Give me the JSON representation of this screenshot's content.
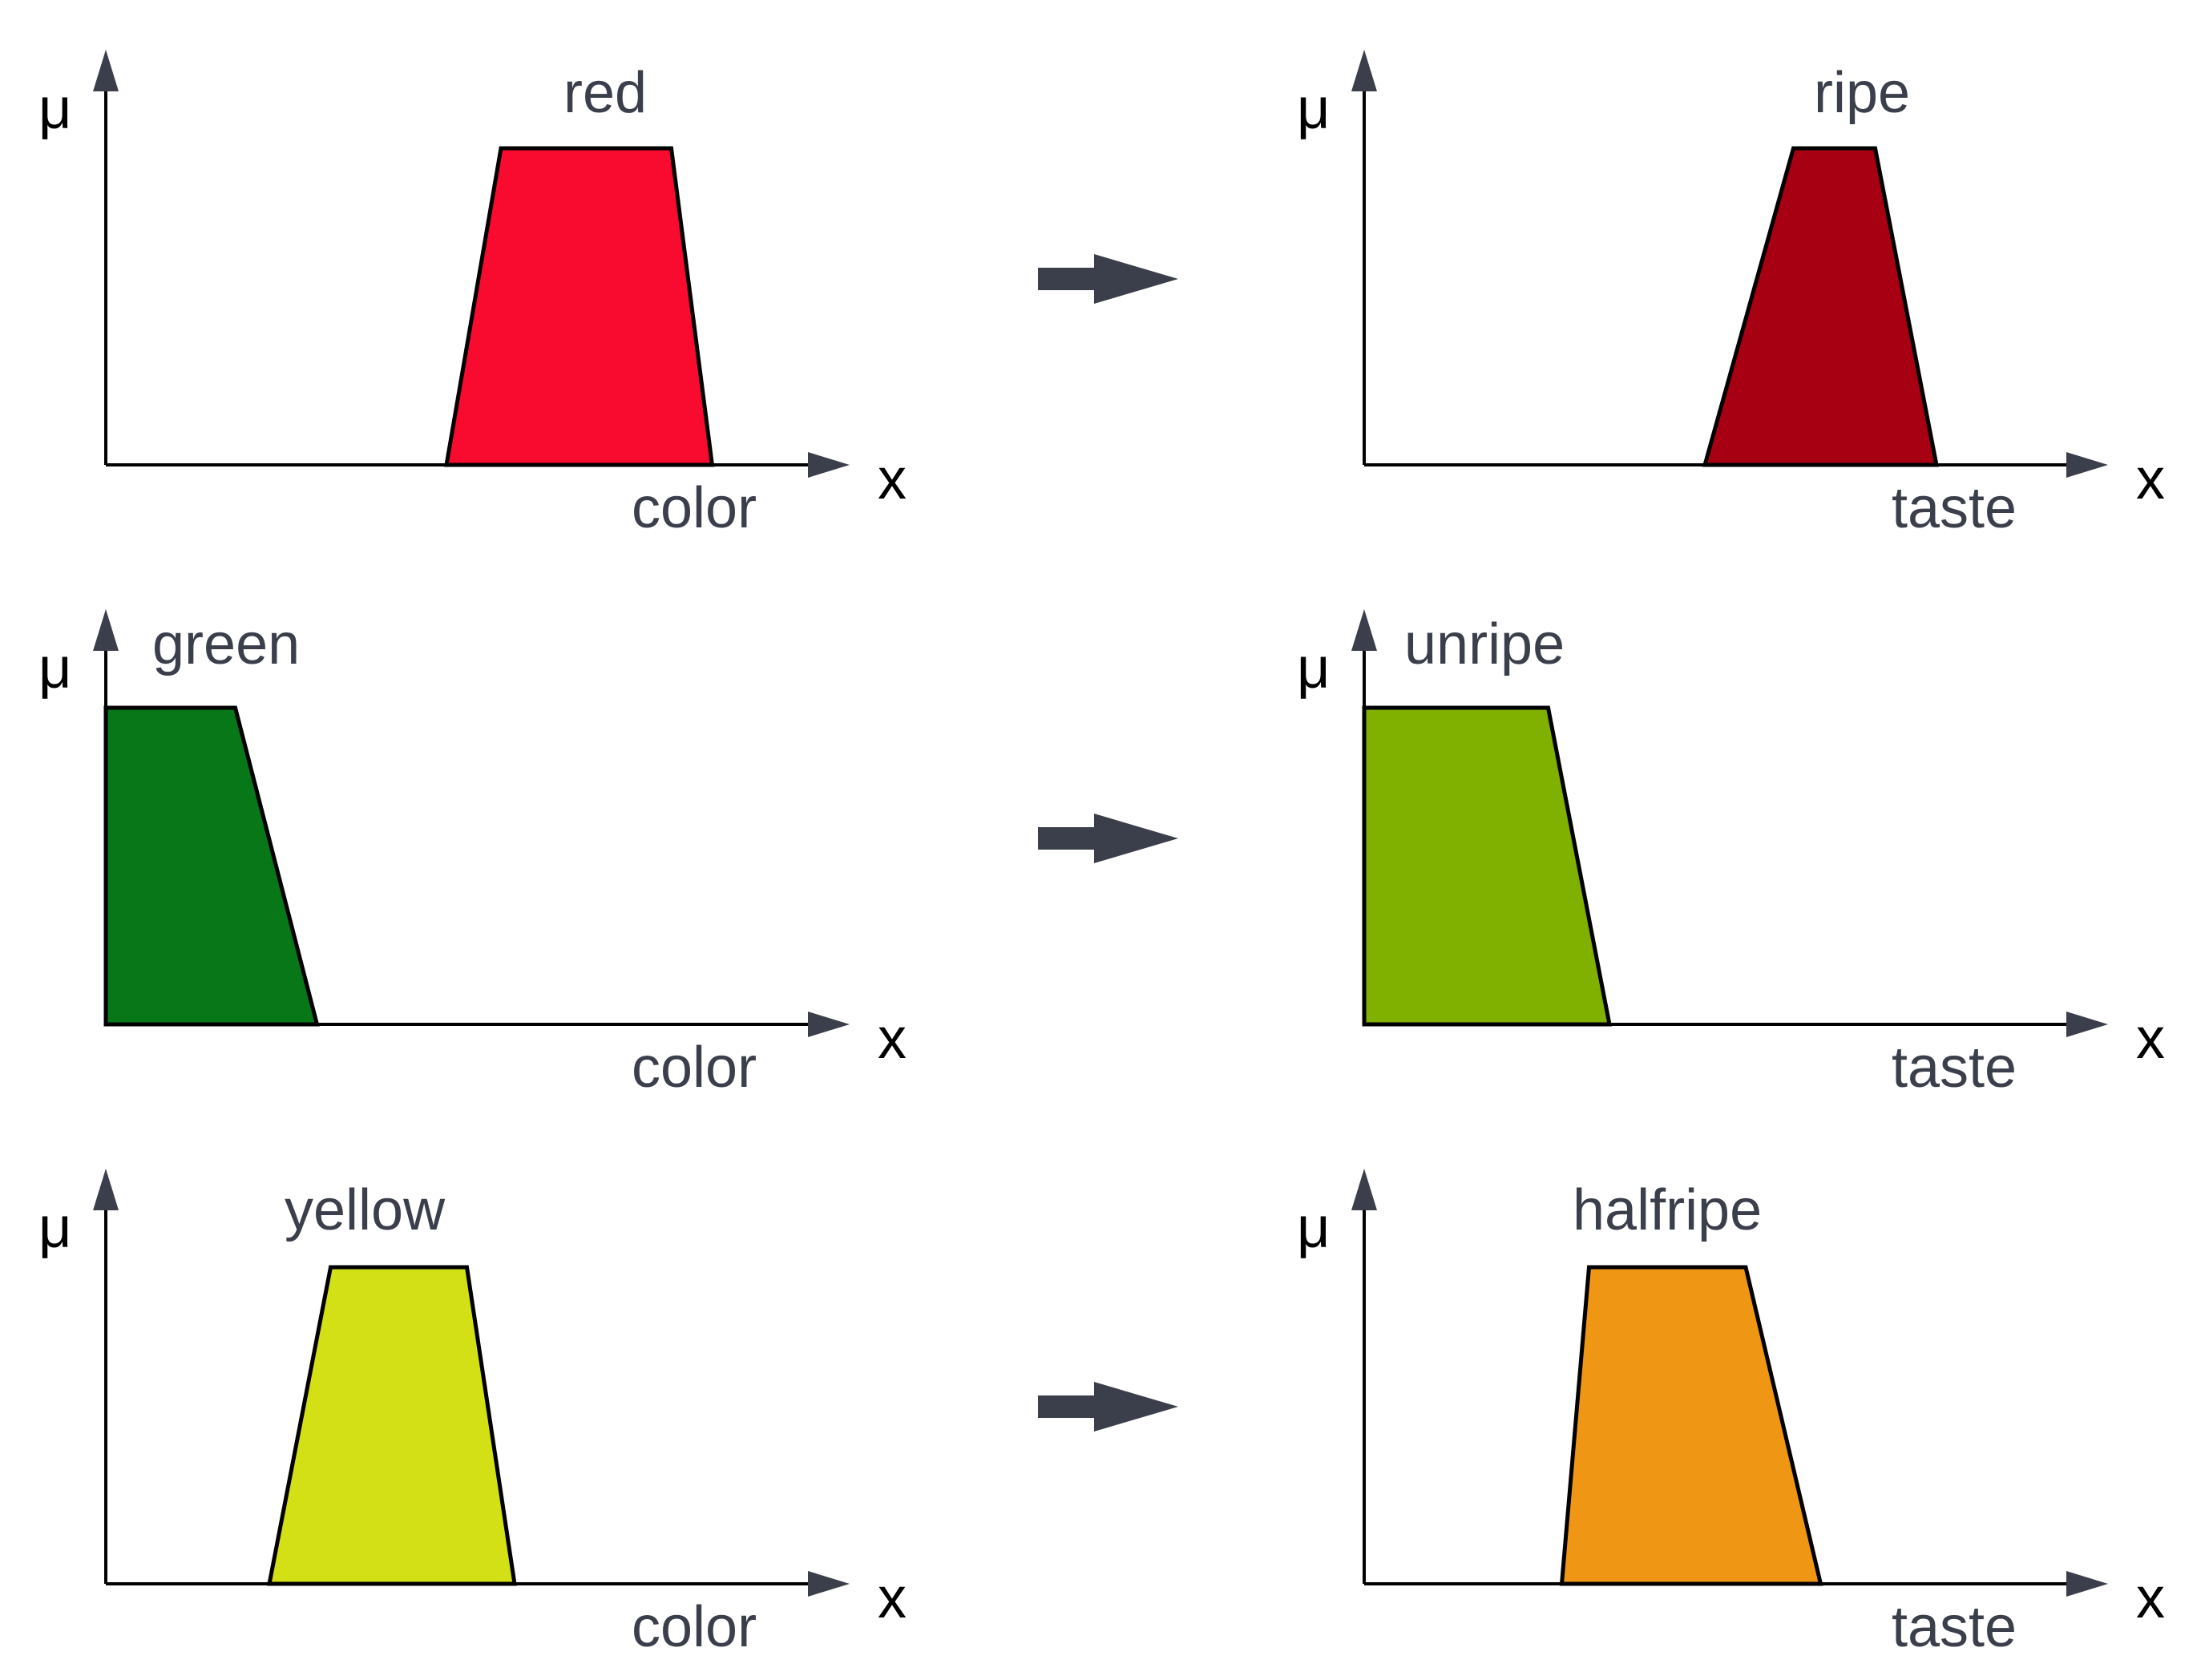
{
  "rows": [
    {
      "input": {
        "mu_label": "μ",
        "x_label": "x",
        "axis_label": "color",
        "set_label": "red",
        "color": "#F80B2E",
        "shape": [
          [
            0.5,
            0
          ],
          [
            0.58,
            1
          ],
          [
            0.83,
            1
          ],
          [
            0.89,
            0
          ]
        ]
      },
      "output": {
        "mu_label": "μ",
        "x_label": "x",
        "axis_label": "taste",
        "set_label": "ripe",
        "color": "#A80013",
        "shape": [
          [
            0.5,
            0
          ],
          [
            0.63,
            1
          ],
          [
            0.75,
            1
          ],
          [
            0.84,
            0
          ]
        ]
      }
    },
    {
      "input": {
        "mu_label": "μ",
        "x_label": "x",
        "axis_label": "color",
        "set_label": "green",
        "color": "#077718",
        "shape": [
          [
            0,
            0
          ],
          [
            0,
            1
          ],
          [
            0.19,
            1
          ],
          [
            0.31,
            0
          ]
        ]
      },
      "output": {
        "mu_label": "μ",
        "x_label": "x",
        "axis_label": "taste",
        "set_label": "unripe",
        "color": "#80B000",
        "shape": [
          [
            0,
            0
          ],
          [
            0,
            1
          ],
          [
            0.27,
            1
          ],
          [
            0.36,
            0
          ]
        ]
      }
    },
    {
      "input": {
        "mu_label": "μ",
        "x_label": "x",
        "axis_label": "color",
        "set_label": "yellow",
        "color": "#D3E015",
        "shape": [
          [
            0.24,
            0
          ],
          [
            0.33,
            1
          ],
          [
            0.53,
            1
          ],
          [
            0.6,
            0
          ]
        ]
      },
      "output": {
        "mu_label": "μ",
        "x_label": "x",
        "axis_label": "taste",
        "set_label": "halfripe",
        "color": "#EF9715",
        "shape": [
          [
            0.29,
            0
          ],
          [
            0.33,
            1
          ],
          [
            0.56,
            1
          ],
          [
            0.67,
            0
          ]
        ]
      }
    }
  ],
  "axis_color": "#000000",
  "text_color": "#3a3f4b",
  "arrow_color": "#3a3f4b"
}
